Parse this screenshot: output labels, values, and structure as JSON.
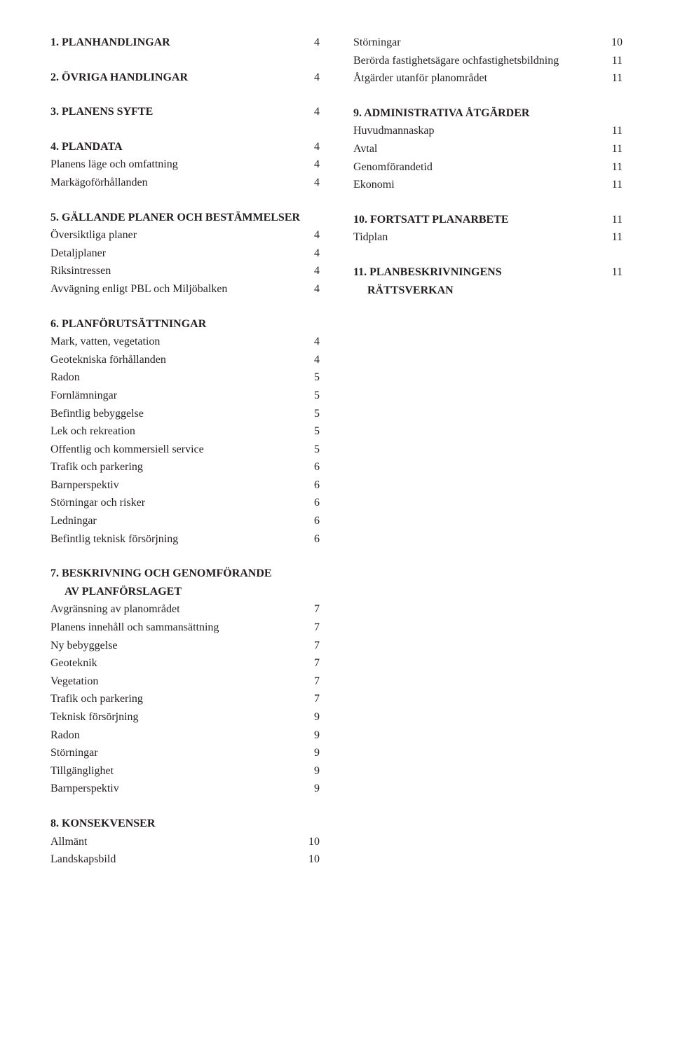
{
  "left": [
    {
      "type": "heading",
      "text": "1. PLANHANDLINGAR",
      "page": "4"
    },
    {
      "type": "gap"
    },
    {
      "type": "heading",
      "text": "2. ÖVRIGA HANDLINGAR",
      "page": "4"
    },
    {
      "type": "gap"
    },
    {
      "type": "heading",
      "text": "3. PLANENS SYFTE",
      "page": "4"
    },
    {
      "type": "gap"
    },
    {
      "type": "heading",
      "text": "4. PLANDATA",
      "page": "4"
    },
    {
      "type": "entry",
      "text": "Planens läge och omfattning",
      "page": "4"
    },
    {
      "type": "entry",
      "text": "Markägoförhållanden",
      "page": "4"
    },
    {
      "type": "gap"
    },
    {
      "type": "heading",
      "text": "5. GÄLLANDE PLANER OCH BESTÄMMELSER",
      "page": ""
    },
    {
      "type": "entry",
      "text": "Översiktliga planer",
      "page": "4"
    },
    {
      "type": "entry",
      "text": "Detaljplaner",
      "page": "4"
    },
    {
      "type": "entry",
      "text": "Riksintressen",
      "page": "4"
    },
    {
      "type": "entry",
      "text": "Avvägning enligt PBL och Miljöbalken",
      "page": "4"
    },
    {
      "type": "gap"
    },
    {
      "type": "heading",
      "text": "6. PLANFÖRUTSÄTTNINGAR",
      "page": ""
    },
    {
      "type": "entry",
      "text": "Mark, vatten, vegetation",
      "page": "4"
    },
    {
      "type": "entry",
      "text": "Geotekniska förhållanden",
      "page": "4"
    },
    {
      "type": "entry",
      "text": "Radon",
      "page": "5"
    },
    {
      "type": "entry",
      "text": "Fornlämningar",
      "page": "5"
    },
    {
      "type": "entry",
      "text": "Befintlig bebyggelse",
      "page": "5"
    },
    {
      "type": "entry",
      "text": "Lek och rekreation",
      "page": "5"
    },
    {
      "type": "entry",
      "text": "Offentlig och kommersiell service",
      "page": "5"
    },
    {
      "type": "entry",
      "text": "Trafik och parkering",
      "page": "6"
    },
    {
      "type": "entry",
      "text": "Barnperspektiv",
      "page": "6"
    },
    {
      "type": "entry",
      "text": "Störningar och risker",
      "page": "6"
    },
    {
      "type": "entry",
      "text": "Ledningar",
      "page": "6"
    },
    {
      "type": "entry",
      "text": "Befintlig teknisk försörjning",
      "page": "6"
    },
    {
      "type": "gap"
    },
    {
      "type": "heading",
      "text": "7. BESKRIVNING OCH GENOMFÖRANDE",
      "page": ""
    },
    {
      "type": "heading-cont",
      "text": "AV PLANFÖRSLAGET",
      "page": ""
    },
    {
      "type": "entry",
      "text": "Avgränsning av planområdet",
      "page": "7"
    },
    {
      "type": "entry",
      "text": "Planens innehåll och sammansättning",
      "page": "7"
    },
    {
      "type": "entry",
      "text": "Ny bebyggelse",
      "page": "7"
    },
    {
      "type": "entry",
      "text": "Geoteknik",
      "page": "7"
    },
    {
      "type": "entry",
      "text": "Vegetation",
      "page": "7"
    },
    {
      "type": "entry",
      "text": "Trafik och parkering",
      "page": "7"
    },
    {
      "type": "entry",
      "text": "Teknisk försörjning",
      "page": "9"
    },
    {
      "type": "entry",
      "text": "Radon",
      "page": "9"
    },
    {
      "type": "entry",
      "text": "Störningar",
      "page": "9"
    },
    {
      "type": "entry",
      "text": "Tillgänglighet",
      "page": "9"
    },
    {
      "type": "entry",
      "text": "Barnperspektiv",
      "page": "9"
    },
    {
      "type": "gap"
    },
    {
      "type": "heading",
      "text": "8. KONSEKVENSER",
      "page": ""
    },
    {
      "type": "entry",
      "text": "Allmänt",
      "page": "10"
    },
    {
      "type": "entry",
      "text": "Landskapsbild",
      "page": "10"
    }
  ],
  "right": [
    {
      "type": "entry",
      "text": "Störningar",
      "page": "10"
    },
    {
      "type": "entry",
      "text": "Berörda fastighetsägare ochfastighetsbildning",
      "page": "11"
    },
    {
      "type": "entry",
      "text": "Åtgärder utanför planområdet",
      "page": "11"
    },
    {
      "type": "gap"
    },
    {
      "type": "heading",
      "text": "9. ADMINISTRATIVA ÅTGÄRDER",
      "page": ""
    },
    {
      "type": "entry",
      "text": "Huvudmannaskap",
      "page": "11"
    },
    {
      "type": "entry",
      "text": "Avtal",
      "page": "11"
    },
    {
      "type": "entry",
      "text": "Genomförandetid",
      "page": "11"
    },
    {
      "type": "entry",
      "text": "Ekonomi",
      "page": "11"
    },
    {
      "type": "gap"
    },
    {
      "type": "heading",
      "text": "10. FORTSATT PLANARBETE",
      "page": "11"
    },
    {
      "type": "entry",
      "text": "Tidplan",
      "page": "11"
    },
    {
      "type": "gap"
    },
    {
      "type": "heading",
      "text": "11. PLANBESKRIVNINGENS",
      "page": "11"
    },
    {
      "type": "heading-cont",
      "text": "RÄTTSVERKAN",
      "page": ""
    }
  ]
}
